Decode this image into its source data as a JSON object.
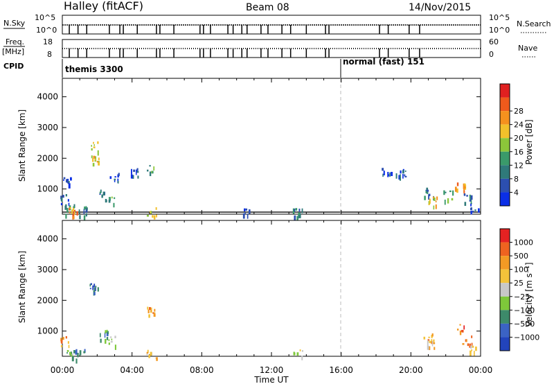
{
  "header": {
    "station": "Halley (fitACF)",
    "beam": "Beam 08",
    "date": "14/Nov/2015"
  },
  "left_labels": {
    "nsky": "N.Sky",
    "freq": "Freq.",
    "freq_unit": "[MHz]",
    "cpid": "CPID"
  },
  "right_labels": {
    "nsearch": "N.Search",
    "nave": "Nave"
  },
  "nsky_panel": {
    "left_ticks": [
      "10^5",
      "10^0"
    ],
    "right_ticks": [
      "10^5",
      "10^0"
    ]
  },
  "freq_panel": {
    "left_ticks": [
      "18",
      "8"
    ],
    "right_ticks": [
      "60",
      "0"
    ]
  },
  "cpid_panel": {
    "segments": [
      {
        "label": "themis 3300",
        "start_hour": 0
      },
      {
        "label": "normal (fast) 151",
        "start_hour": 16
      }
    ]
  },
  "colors": {
    "power_scale": [
      "#0b2fe6",
      "#2c4fb0",
      "#2f7a7a",
      "#3a9a6a",
      "#8cc63a",
      "#f2c02b",
      "#f5911e",
      "#ef5a1c",
      "#e02020"
    ],
    "velocity_scale": [
      "#2244bb",
      "#3b63c4",
      "#3d8a6a",
      "#7ec83a",
      "#c8c8c8",
      "#f3c33a",
      "#f39a24",
      "#ee6320",
      "#e52222"
    ]
  },
  "chart_data": [
    {
      "type": "heatmap",
      "title": "Power",
      "ylabel": "Slant Range [km]",
      "xlabel": "",
      "xlim": [
        0,
        24
      ],
      "ylim": [
        180,
        4600
      ],
      "yticks": [
        1000,
        2000,
        3000,
        4000
      ],
      "colorbar": {
        "label": "Power [dB]",
        "ticks": [
          "4",
          "8",
          "12",
          "16",
          "20",
          "24",
          "28"
        ]
      },
      "scatter_clusters": [
        {
          "hour": 0.1,
          "range": 700,
          "level": 1
        },
        {
          "hour": 0.2,
          "range": 1300,
          "level": 1
        },
        {
          "hour": 0.4,
          "range": 350,
          "level": 3
        },
        {
          "hour": 0.6,
          "range": 250,
          "level": 6
        },
        {
          "hour": 1.2,
          "range": 300,
          "level": 2
        },
        {
          "hour": 1.8,
          "range": 2400,
          "level": 4
        },
        {
          "hour": 1.8,
          "range": 1950,
          "level": 5
        },
        {
          "hour": 2.4,
          "range": 850,
          "level": 2
        },
        {
          "hour": 2.7,
          "range": 600,
          "level": 3
        },
        {
          "hour": 3.0,
          "range": 1400,
          "level": 1
        },
        {
          "hour": 4.2,
          "range": 1550,
          "level": 1
        },
        {
          "hour": 5.0,
          "range": 1650,
          "level": 3
        },
        {
          "hour": 5.1,
          "range": 250,
          "level": 4
        },
        {
          "hour": 10.6,
          "range": 240,
          "level": 1
        },
        {
          "hour": 13.5,
          "range": 240,
          "level": 2
        },
        {
          "hour": 18.6,
          "range": 1600,
          "level": 1
        },
        {
          "hour": 19.4,
          "range": 1500,
          "level": 1
        },
        {
          "hour": 21.0,
          "range": 900,
          "level": 2
        },
        {
          "hour": 21.2,
          "range": 600,
          "level": 5
        },
        {
          "hour": 22.1,
          "range": 800,
          "level": 3
        },
        {
          "hour": 22.8,
          "range": 1100,
          "level": 6
        },
        {
          "hour": 23.2,
          "range": 700,
          "level": 2
        },
        {
          "hour": 23.6,
          "range": 400,
          "level": 1
        }
      ]
    },
    {
      "type": "heatmap",
      "title": "Velocity",
      "ylabel": "Slant Range [km]",
      "xlabel": "Time UT",
      "xlim": [
        0,
        24
      ],
      "ylim": [
        180,
        4600
      ],
      "yticks": [
        1000,
        2000,
        3000,
        4000
      ],
      "xticks": [
        "00:00",
        "04:00",
        "08:00",
        "12:00",
        "16:00",
        "20:00",
        "00:00"
      ],
      "colorbar": {
        "label": "Velocity [m s⁻¹]",
        "ticks": [
          "1000",
          "500",
          "100",
          "25",
          "−25",
          "−100",
          "−500",
          "−1000"
        ]
      },
      "scatter_clusters": [
        {
          "hour": 0.1,
          "range": 700,
          "level": 6
        },
        {
          "hour": 0.4,
          "range": 300,
          "level": 3
        },
        {
          "hour": 1.0,
          "range": 260,
          "level": 2
        },
        {
          "hour": 1.8,
          "range": 2400,
          "level": 1
        },
        {
          "hour": 2.4,
          "range": 900,
          "level": 2
        },
        {
          "hour": 2.8,
          "range": 700,
          "level": 3
        },
        {
          "hour": 5.0,
          "range": 1650,
          "level": 6
        },
        {
          "hour": 5.1,
          "range": 260,
          "level": 5
        },
        {
          "hour": 13.5,
          "range": 250,
          "level": 4
        },
        {
          "hour": 21.0,
          "range": 800,
          "level": 6
        },
        {
          "hour": 21.2,
          "range": 600,
          "level": 5
        },
        {
          "hour": 22.8,
          "range": 1100,
          "level": 7
        },
        {
          "hour": 23.2,
          "range": 700,
          "level": 6
        },
        {
          "hour": 23.6,
          "range": 400,
          "level": 5
        }
      ]
    }
  ]
}
